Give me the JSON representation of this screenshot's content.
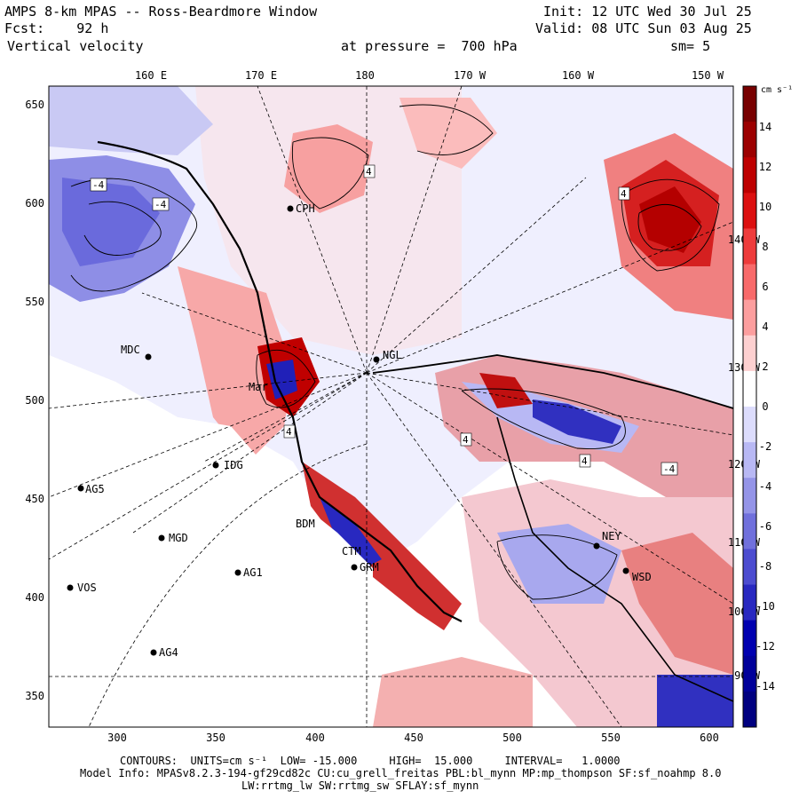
{
  "header": {
    "title": "AMPS 8-km MPAS -- Ross-Beardmore Window",
    "forecast": "Fcst:    92 h",
    "variable": "Vertical velocity",
    "init": "Init: 12 UTC Wed 30 Jul 25",
    "valid": "Valid: 08 UTC Sun 03 Aug 25",
    "pressure": "at pressure =  700 hPa",
    "smoothing": "sm= 5"
  },
  "colorbar": {
    "units": "cm s⁻¹",
    "labels": [
      "14",
      "12",
      "10",
      "8",
      "6",
      "4",
      "2",
      "0",
      "-2",
      "-4",
      "-6",
      "-8",
      "-10",
      "-12",
      "-14"
    ],
    "colors": [
      "#780000",
      "#9c0000",
      "#be0000",
      "#dc1010",
      "#ee3c3c",
      "#f86a6a",
      "#fc9e9e",
      "#fdd0d0",
      "#ffffff",
      "#dcdcfc",
      "#b8b8f4",
      "#9494e8",
      "#7070dc",
      "#4c4cd0",
      "#2828c0",
      "#0000b0",
      "#00009a",
      "#000080"
    ]
  },
  "axes": {
    "top_labels": [
      "160 E",
      "170 E",
      "180",
      "170 W",
      "160 W",
      "150 W"
    ],
    "bottom_labels": [
      "300",
      "350",
      "400",
      "450",
      "500",
      "550",
      "600"
    ],
    "left_labels": [
      "650",
      "600",
      "550",
      "500",
      "450",
      "400",
      "350"
    ],
    "right_labels": [
      "140 W",
      "130 W",
      "120 W",
      "110 W",
      "100 W",
      "90 W"
    ]
  },
  "stations": [
    "MDC",
    "NGL",
    "IDG",
    "AG5",
    "MGD",
    "AG1",
    "VOS",
    "AG4",
    "BDM",
    "WSD",
    "NEY",
    "CPH",
    "GRM",
    "CTM",
    "Mar"
  ],
  "contour_labels": [
    "-4",
    "4",
    "-4",
    "4",
    "4",
    "-4",
    "4",
    "4"
  ],
  "footer": {
    "contours": "CONTOURS:  UNITS=cm s⁻¹  LOW= -15.000     HIGH=  15.000     INTERVAL=   1.0000",
    "model_info": "Model Info: MPASv8.2.3-194-gf29cd82c CU:cu_grell_freitas PBL:bl_mynn MP:mp_thompson SF:sf_noahmp 8.0",
    "physics": "LW:rrtmg_lw SW:rrtmg_sw SFLAY:sf_mynn"
  }
}
